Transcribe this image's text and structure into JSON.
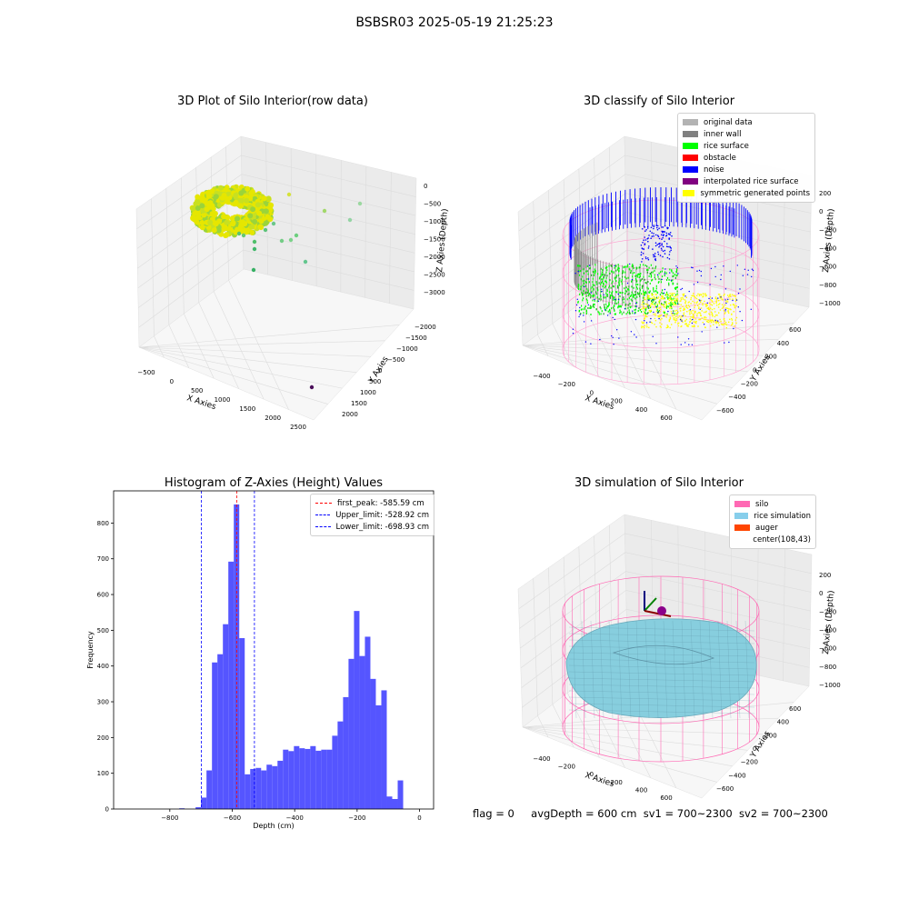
{
  "figure": {
    "title": "BSBSR03 2025-05-19 21:25:23",
    "info": {
      "flag": "flag = 0",
      "avg_depth": "avgDepth = 600 cm",
      "sv1": "sv1 = 700~2300",
      "sv2": "sv2 = 700~2300"
    }
  },
  "colors": {
    "hist_bar": "#4c4cff",
    "peak_line": "#ff0000",
    "limit_line": "#0000ff",
    "pane": "#f2f2f2",
    "grid": "#d9d9d9"
  },
  "chart_data": [
    {
      "type": "scatter",
      "projection": "3d",
      "title": "3D Plot of Silo Interior(row data)",
      "xlabel": "X Axies",
      "ylabel": "Y Axies",
      "zlabel": "Z Axies (Depth)",
      "xticks": [
        "−500",
        "0",
        "500",
        "1000",
        "1500",
        "2000",
        "2500"
      ],
      "yticks": [
        "2000",
        "1500",
        "1000",
        "500",
        "0",
        "−500",
        "−1000",
        "−1500",
        "−2000"
      ],
      "zticks": [
        "0",
        "−500",
        "−1000",
        "−1500",
        "−2000",
        "−2500",
        "−3000"
      ],
      "xlim": [
        -600,
        2500
      ],
      "ylim": [
        -2000,
        2000
      ],
      "zlim": [
        -3200,
        0
      ],
      "colormap": "viridis (colored by depth)",
      "grid": true
    },
    {
      "type": "scatter",
      "projection": "3d",
      "title": "3D classify of Silo Interior",
      "xlabel": "X Axies",
      "ylabel": "Y Axies",
      "zlabel": "Z Axies (Depth)",
      "xticks": [
        "−400",
        "−200",
        "0",
        "200",
        "400",
        "600"
      ],
      "yticks": [
        "600",
        "400",
        "200",
        "0",
        "−200",
        "−400",
        "−600"
      ],
      "zticks": [
        "200",
        "0",
        "−200",
        "−400",
        "−600",
        "−800",
        "−1000"
      ],
      "legend_position": "upper-right",
      "legend": [
        {
          "label": "original data",
          "color": "#b3b3b3"
        },
        {
          "label": "inner wall",
          "color": "#808080"
        },
        {
          "label": "rice surface",
          "color": "#00ff00"
        },
        {
          "label": "obstacle",
          "color": "#ff0000"
        },
        {
          "label": "noise",
          "color": "#0000ff"
        },
        {
          "label": "interpolated rice surface",
          "color": "#800080"
        },
        {
          "label": "symmetric generated points",
          "color": "#ffff00"
        }
      ],
      "grid": true
    },
    {
      "type": "bar",
      "title": "Histogram of Z-Axies (Height) Values",
      "xlabel": "Depth (cm)",
      "ylabel": "Frequency",
      "xlim": [
        -980,
        45
      ],
      "ylim": [
        0,
        890
      ],
      "xticks": [
        -800,
        -600,
        -400,
        -200,
        0
      ],
      "xtick_labels": [
        "−800",
        "−600",
        "−400",
        "−200",
        "0"
      ],
      "yticks": [
        0,
        100,
        200,
        300,
        400,
        500,
        600,
        700,
        800
      ],
      "bin_width": 17.5,
      "bins_start": [
        -770,
        -752.5,
        -735,
        -717.5,
        -700,
        -682.5,
        -665,
        -647.5,
        -630,
        -612.5,
        -595,
        -577.5,
        -560,
        -542.5,
        -525,
        -507.5,
        -490,
        -472.5,
        -455,
        -437.5,
        -420,
        -402.5,
        -385,
        -367.5,
        -350,
        -332.5,
        -315,
        -297.5,
        -280,
        -262.5,
        -245,
        -227.5,
        -210,
        -192.5,
        -175,
        -157.5,
        -140,
        -122.5,
        -105,
        -87.5,
        -70,
        -52.5,
        -35,
        -17.5
      ],
      "values": [
        2,
        0,
        0,
        5,
        32,
        108,
        410,
        433,
        517,
        692,
        852,
        478,
        97,
        112,
        115,
        108,
        124,
        120,
        135,
        166,
        162,
        176,
        170,
        168,
        176,
        163,
        166,
        166,
        205,
        245,
        313,
        420,
        554,
        428,
        482,
        364,
        290,
        332,
        35,
        28,
        80,
        0,
        0,
        0
      ],
      "vlines": [
        {
          "label": "first_peak: -585.59 cm",
          "x": -585.59,
          "color": "#ff0000"
        },
        {
          "label": "Upper_limit: -528.92 cm",
          "x": -528.92,
          "color": "#0000ff"
        },
        {
          "label": "Lower_limit: -698.93 cm",
          "x": -698.93,
          "color": "#0000ff"
        }
      ],
      "legend_position": "upper-right",
      "grid": false
    },
    {
      "type": "surface",
      "projection": "3d",
      "title": "3D simulation of Silo Interior",
      "xlabel": "X Axies",
      "ylabel": "Y Axies",
      "zlabel": "Z Axies (Depth)",
      "xticks": [
        "−400",
        "−200",
        "0",
        "200",
        "400",
        "600"
      ],
      "yticks": [
        "600",
        "400",
        "200",
        "0",
        "−200",
        "−400",
        "−600"
      ],
      "zticks": [
        "200",
        "0",
        "−200",
        "−400",
        "−600",
        "−800",
        "−1000"
      ],
      "legend_position": "upper-right",
      "legend": [
        {
          "label": "silo",
          "color": "#ff69b4"
        },
        {
          "label": "rice simulation",
          "color": "#87ceeb"
        },
        {
          "label": "auger",
          "color": "#ff4500"
        },
        {
          "label": "center(108,43)",
          "color": "none"
        }
      ],
      "grid": true
    }
  ]
}
